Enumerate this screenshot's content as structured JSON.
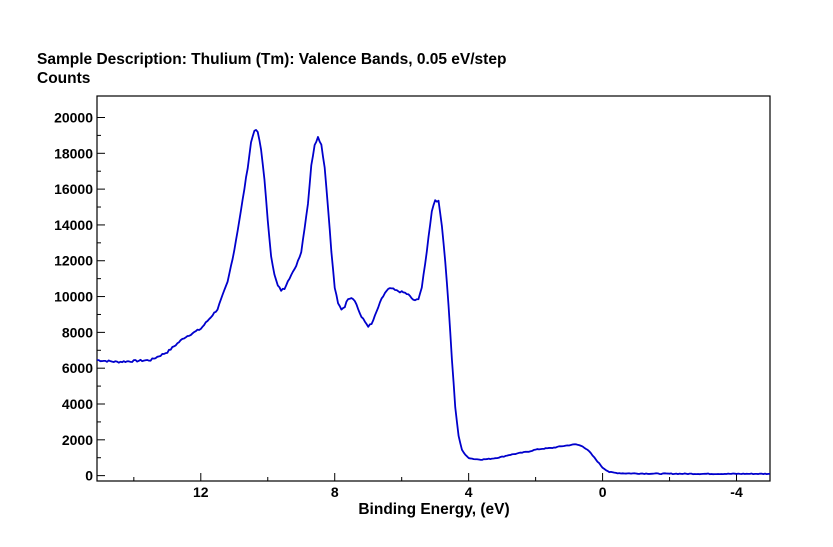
{
  "chart_data": {
    "type": "line",
    "title": "Sample Description:  Thulium (Tm): Valence Bands, 0.05 eV/step",
    "ylabel": "Counts",
    "xlabel": "Binding Energy, (eV)",
    "x_reversed": true,
    "xlim": [
      15.1,
      -5.0
    ],
    "ylim": [
      -300,
      21200
    ],
    "x_ticks": [
      12,
      8,
      4,
      0,
      -4
    ],
    "x_tick_labels": [
      "12",
      "8",
      "4",
      "0",
      "-4"
    ],
    "y_ticks": [
      0,
      2000,
      4000,
      6000,
      8000,
      10000,
      12000,
      14000,
      16000,
      18000,
      20000
    ],
    "y_tick_labels": [
      "0",
      "2000",
      "4000",
      "6000",
      "8000",
      "10000",
      "12000",
      "14000",
      "16000",
      "18000",
      "20000"
    ],
    "series": [
      {
        "name": "Valence Bands",
        "color": "#0000cc",
        "x": [
          15.1,
          14.5,
          14.0,
          13.5,
          13.0,
          12.5,
          12.0,
          11.5,
          11.2,
          11.0,
          10.8,
          10.6,
          10.5,
          10.4,
          10.3,
          10.2,
          10.1,
          10.0,
          9.9,
          9.8,
          9.7,
          9.6,
          9.5,
          9.4,
          9.2,
          9.0,
          8.8,
          8.7,
          8.6,
          8.5,
          8.4,
          8.3,
          8.2,
          8.1,
          8.0,
          7.9,
          7.8,
          7.7,
          7.6,
          7.5,
          7.4,
          7.3,
          7.2,
          7.1,
          7.0,
          6.9,
          6.8,
          6.7,
          6.6,
          6.5,
          6.4,
          6.3,
          6.2,
          6.1,
          6.0,
          5.9,
          5.8,
          5.7,
          5.6,
          5.5,
          5.4,
          5.3,
          5.2,
          5.1,
          5.0,
          4.9,
          4.8,
          4.7,
          4.6,
          4.5,
          4.4,
          4.3,
          4.2,
          4.1,
          4.0,
          3.9,
          3.8,
          3.6,
          3.4,
          3.2,
          3.0,
          2.8,
          2.5,
          2.2,
          2.0,
          1.8,
          1.5,
          1.2,
          1.0,
          0.8,
          0.6,
          0.4,
          0.2,
          0.0,
          -0.2,
          -0.4,
          -0.6,
          -1.0,
          -1.5,
          -2.0,
          -3.0,
          -4.0,
          -5.0
        ],
        "y": [
          6450,
          6350,
          6400,
          6450,
          6900,
          7700,
          8200,
          9300,
          10800,
          12600,
          14800,
          17200,
          18600,
          19300,
          19200,
          18200,
          16600,
          14200,
          12300,
          11200,
          10600,
          10350,
          10450,
          10900,
          11500,
          12500,
          15200,
          17300,
          18500,
          18900,
          18500,
          17200,
          15000,
          12500,
          10500,
          9600,
          9300,
          9450,
          9900,
          9950,
          9800,
          9300,
          8850,
          8600,
          8350,
          8450,
          8900,
          9400,
          9850,
          10200,
          10400,
          10450,
          10350,
          10300,
          10250,
          10200,
          10100,
          9900,
          9750,
          9900,
          10500,
          11800,
          13300,
          14800,
          15400,
          15300,
          14000,
          12000,
          9500,
          6500,
          3800,
          2200,
          1450,
          1150,
          1000,
          950,
          920,
          900,
          930,
          980,
          1050,
          1150,
          1250,
          1350,
          1450,
          1500,
          1550,
          1650,
          1700,
          1750,
          1650,
          1350,
          900,
          450,
          200,
          150,
          130,
          120,
          110,
          105,
          100,
          100,
          100
        ]
      }
    ]
  }
}
